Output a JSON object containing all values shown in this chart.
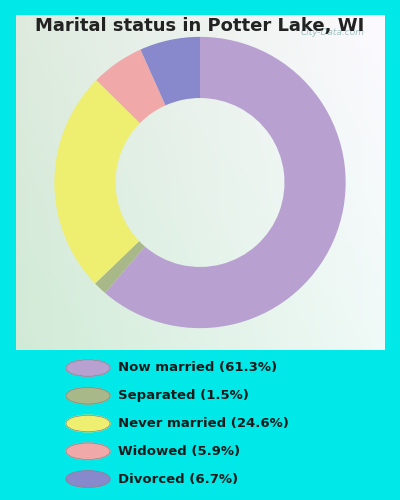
{
  "title": "Marital status in Potter Lake, WI",
  "title_fontsize": 13,
  "title_fontweight": "bold",
  "categories": [
    "Now married",
    "Separated",
    "Never married",
    "Widowed",
    "Divorced"
  ],
  "percentages": [
    61.3,
    1.5,
    24.6,
    5.9,
    6.7
  ],
  "colors": [
    "#b8a0d0",
    "#a8b888",
    "#eeee70",
    "#f0a8a8",
    "#8888cc"
  ],
  "legend_labels": [
    "Now married (61.3%)",
    "Separated (1.5%)",
    "Never married (24.6%)",
    "Widowed (5.9%)",
    "Divorced (6.7%)"
  ],
  "bg_outer": "#00e8e8",
  "watermark": "City-Data.com",
  "startangle": 90,
  "figsize": [
    4.0,
    5.0
  ],
  "dpi": 100
}
